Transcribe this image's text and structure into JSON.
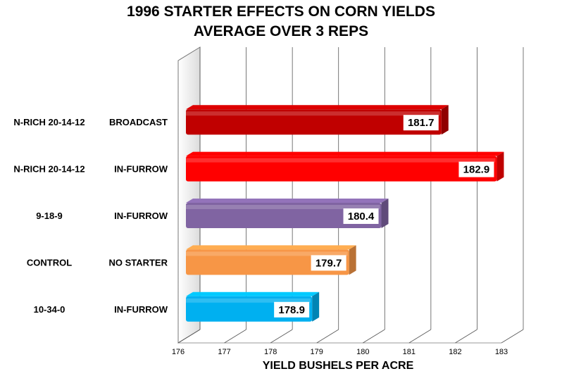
{
  "chart_data": {
    "type": "bar",
    "orientation": "horizontal",
    "title": "1996 STARTER EFFECTS ON CORN YIELDS",
    "subtitle": "AVERAGE OVER 3 REPS",
    "xlabel": "YIELD BUSHELS PER ACRE",
    "ylabel": "",
    "xlim": [
      176,
      183
    ],
    "ticks": [
      176,
      177,
      178,
      179,
      180,
      181,
      182,
      183
    ],
    "grid": true,
    "categories": [
      {
        "left": "N-RICH 20-14-12",
        "right": "BROADCAST"
      },
      {
        "left": "N-RICH 20-14-12",
        "right": "IN-FURROW"
      },
      {
        "left": "9-18-9",
        "right": "IN-FURROW"
      },
      {
        "left": "CONTROL",
        "right": "NO STARTER"
      },
      {
        "left": "10-34-0",
        "right": "IN-FURROW"
      }
    ],
    "values": [
      181.7,
      182.9,
      180.4,
      179.7,
      178.9
    ],
    "value_labels": [
      "181.7",
      "182.9",
      "180.4",
      "179.7",
      "178.9"
    ],
    "colors": [
      "#c00000",
      "#ff0000",
      "#8064a2",
      "#f79646",
      "#00b0f0"
    ]
  }
}
